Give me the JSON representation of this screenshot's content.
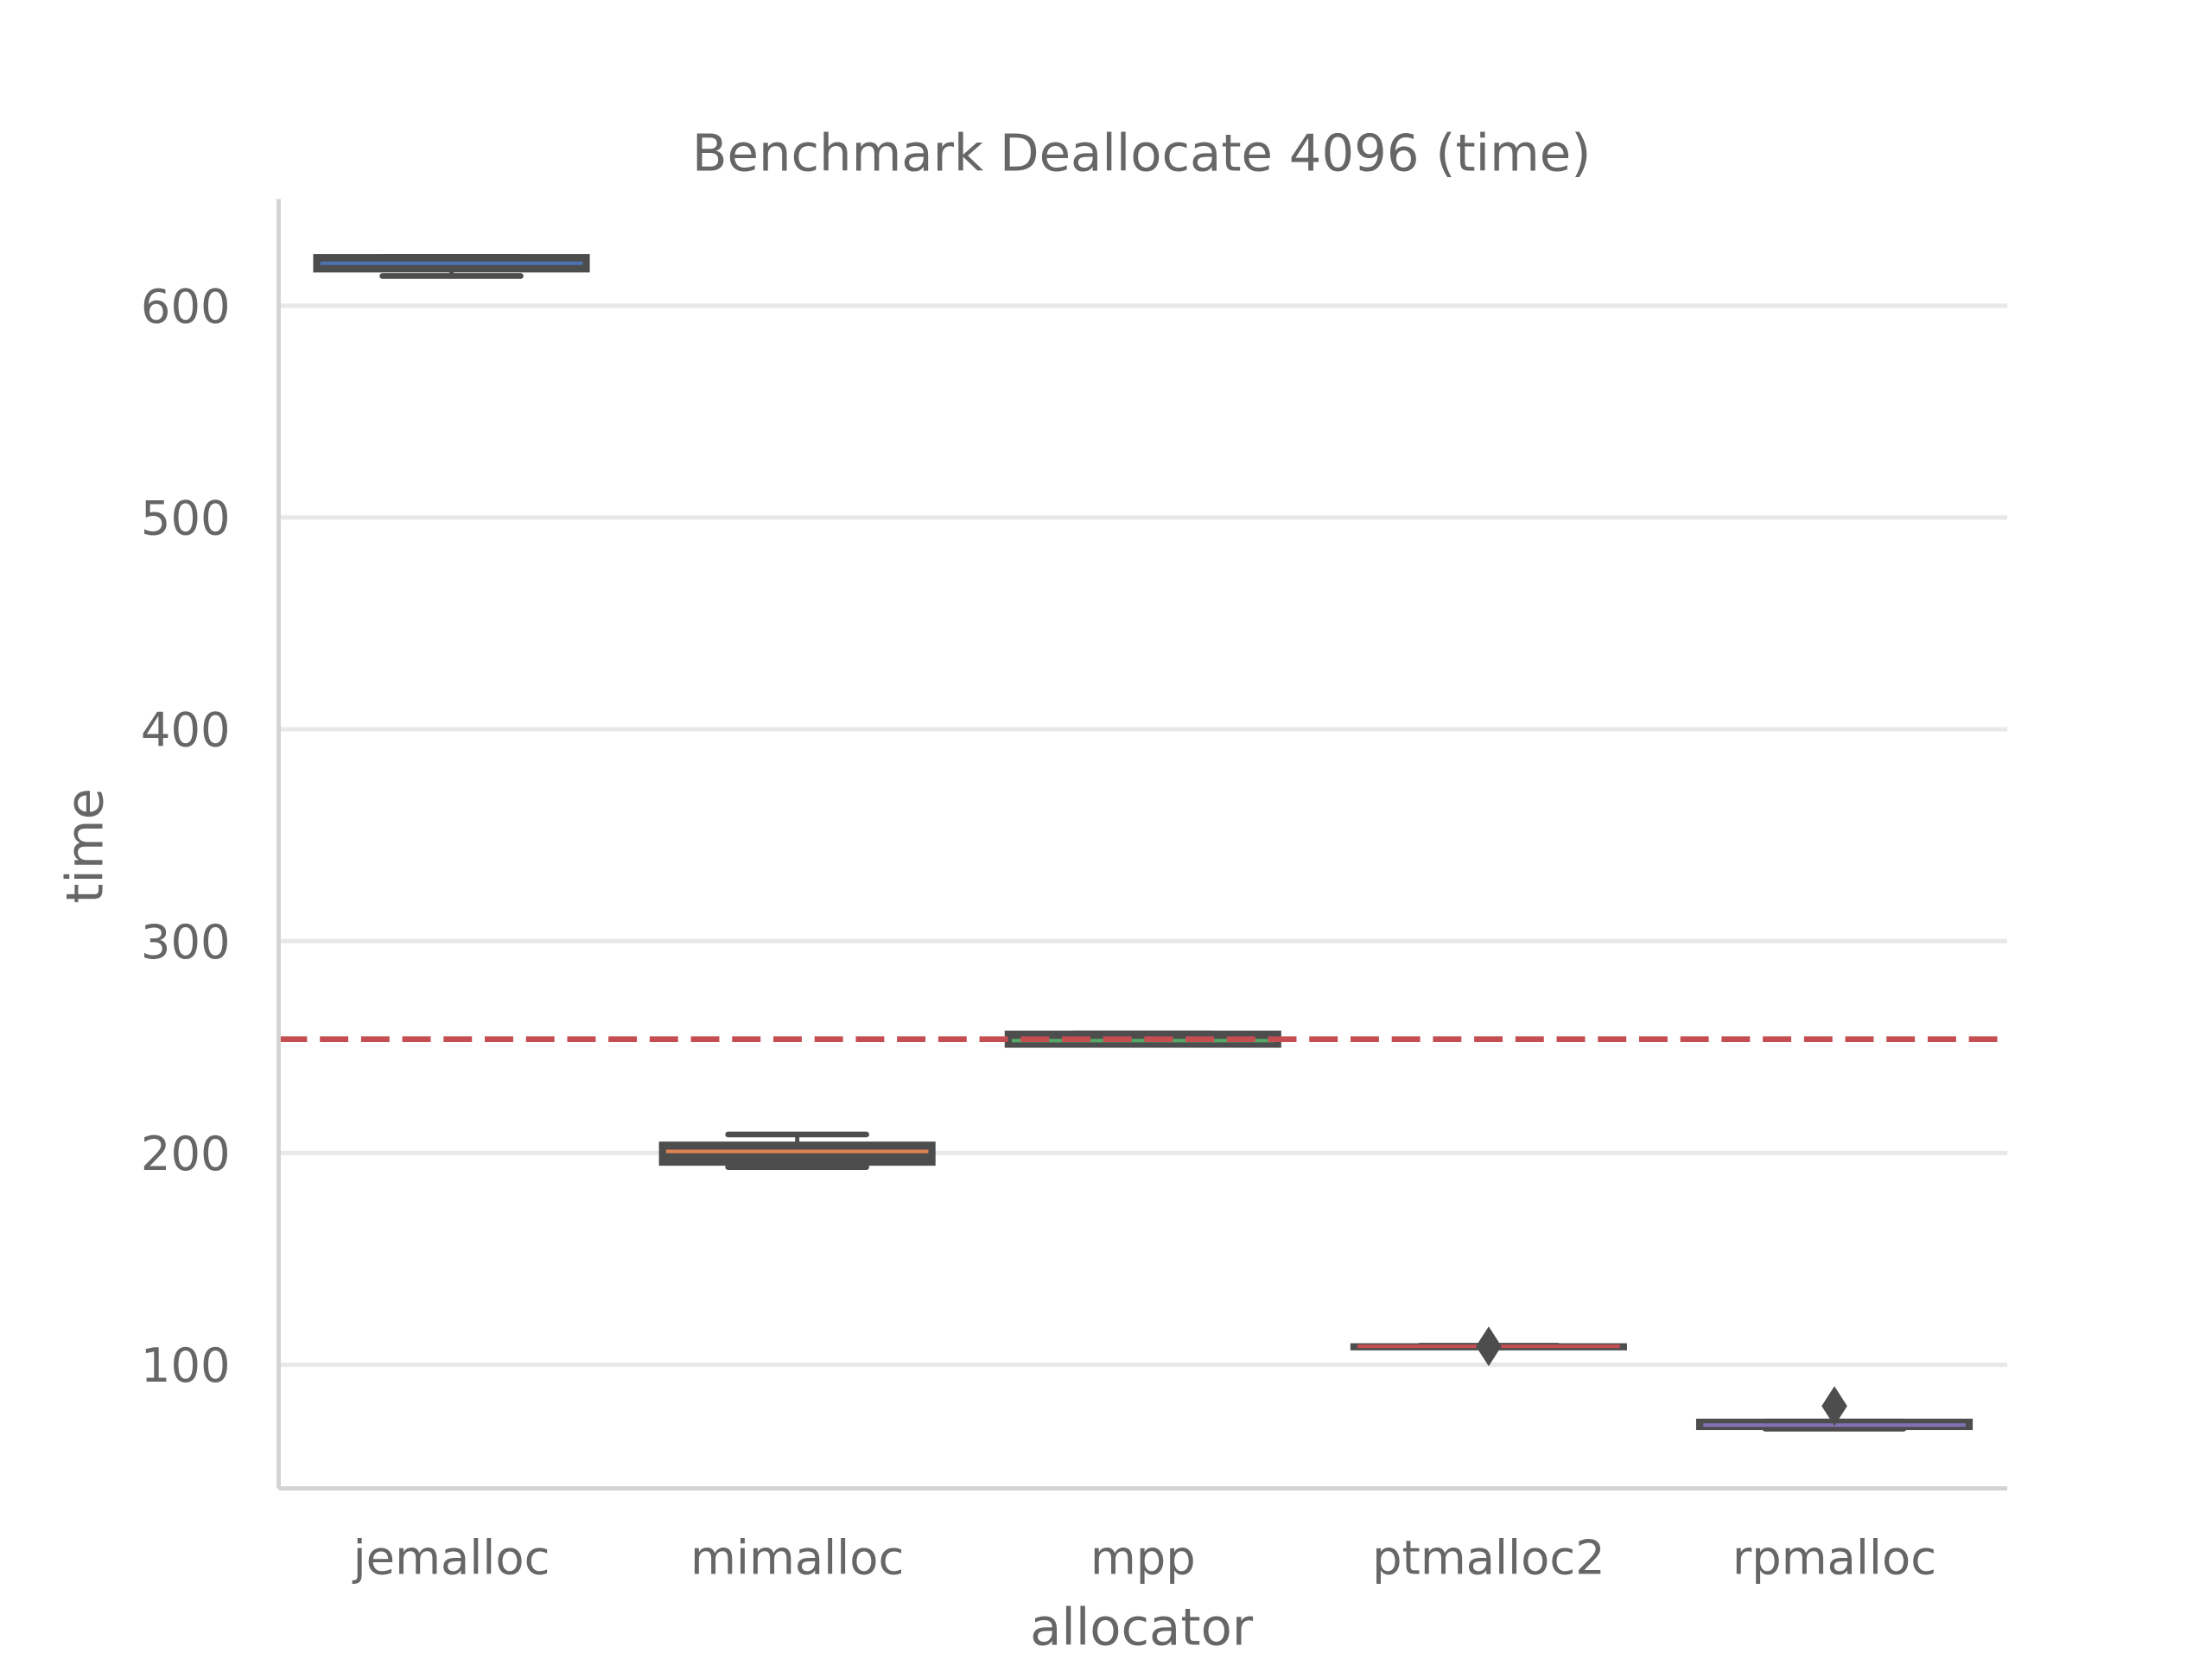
{
  "chart_data": {
    "type": "box",
    "title": "Benchmark Deallocate 4096 (time)",
    "xlabel": "allocator",
    "ylabel": "time",
    "ylim": [
      41.6,
      650
    ],
    "yticks": [
      100,
      200,
      300,
      400,
      500,
      600
    ],
    "grid": true,
    "categories": [
      "jemalloc",
      "mimalloc",
      "mpp",
      "ptmalloc2",
      "rpmalloc"
    ],
    "boxes": [
      {
        "whisker_low": 614,
        "q1": 617,
        "median": 620,
        "q3": 623,
        "whisker_high": 623,
        "outliers": [],
        "median_color": "#4c72b0"
      },
      {
        "whisker_low": 193.3,
        "q1": 195.3,
        "median": 200.7,
        "q3": 204,
        "whisker_high": 208.7,
        "outliers": [],
        "median_color": "#dd8452"
      },
      {
        "whisker_low": 251,
        "q1": 251,
        "median": 253,
        "q3": 256.4,
        "whisker_high": 256.4,
        "outliers": [],
        "median_color": "#55a868"
      },
      {
        "whisker_low": 108.5,
        "q1": 108.6,
        "median": 108.7,
        "q3": 108.8,
        "whisker_high": 109,
        "outliers": [
          108.7
        ],
        "median_color": "#c44e52"
      },
      {
        "whisker_low": 69.8,
        "q1": 70.5,
        "median": 71.5,
        "q3": 73.2,
        "whisker_high": 73.2,
        "outliers": [
          80.5
        ],
        "median_color": "#8172b3"
      }
    ],
    "reference_line": {
      "value": 253.7,
      "style": "dashed",
      "color": "#c44e52"
    },
    "box_color": "#4d4d4d"
  }
}
